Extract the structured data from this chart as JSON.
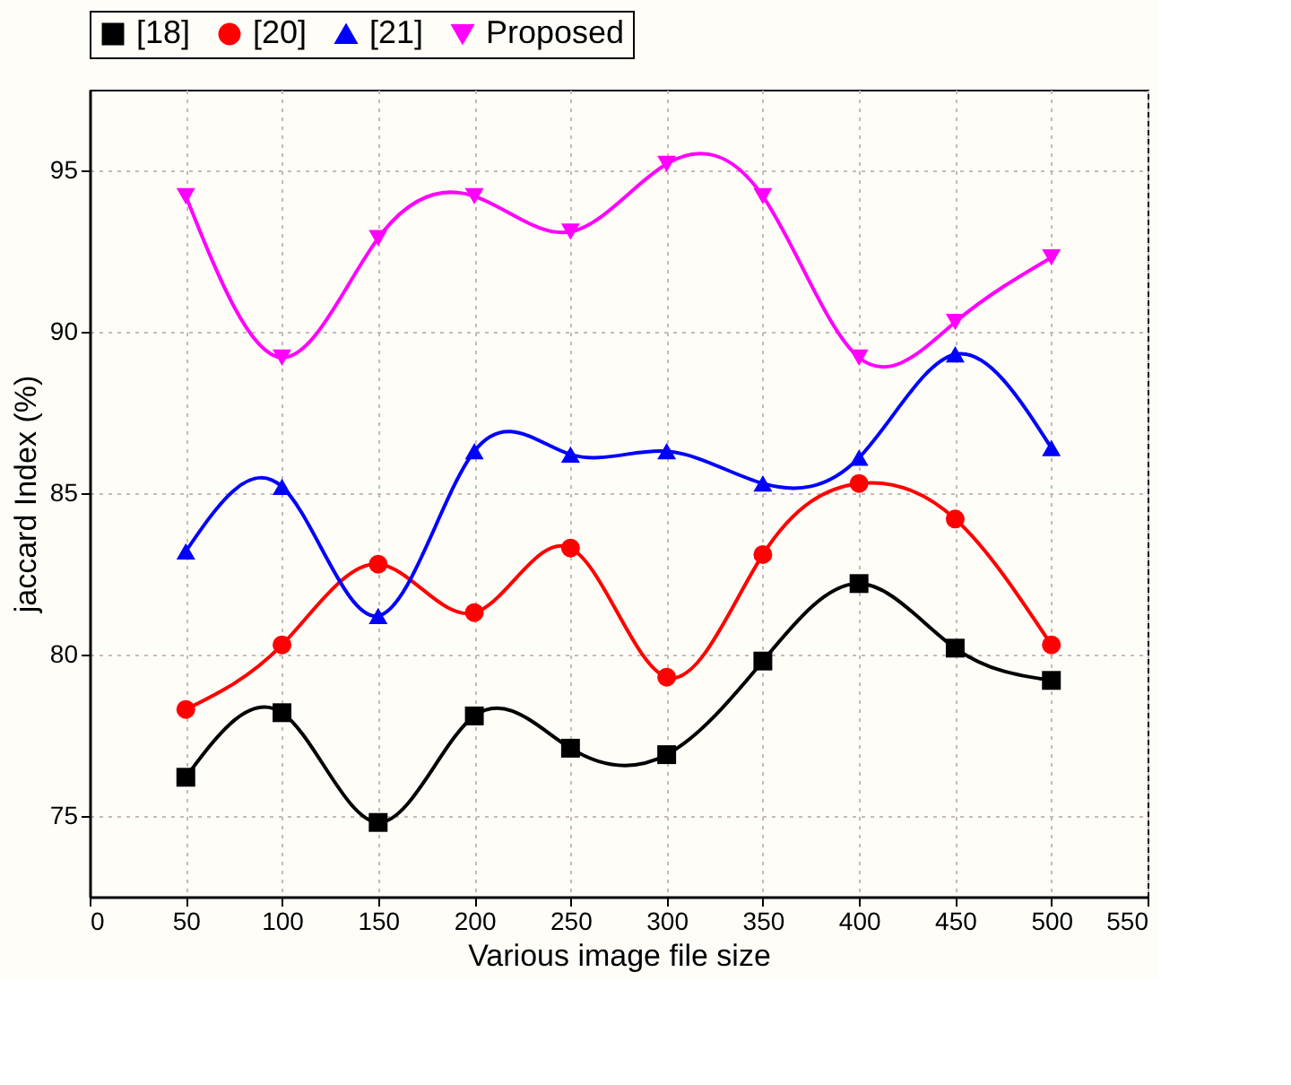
{
  "chart_data": {
    "type": "line",
    "xlabel": "Various image file size",
    "ylabel": "jaccard Index (%)",
    "x": [
      50,
      100,
      150,
      200,
      250,
      300,
      350,
      400,
      450,
      500
    ],
    "series": [
      {
        "name": "[18]",
        "color": "#000000",
        "marker": "square",
        "values": [
          76.2,
          78.2,
          74.8,
          78.1,
          77.1,
          76.9,
          79.8,
          82.2,
          80.2,
          79.2
        ]
      },
      {
        "name": "[20]",
        "color": "#ff0000",
        "marker": "circle",
        "values": [
          78.3,
          80.3,
          82.8,
          81.3,
          83.3,
          79.3,
          83.1,
          85.3,
          84.2,
          80.3
        ]
      },
      {
        "name": "[21]",
        "color": "#0000ff",
        "marker": "triangle",
        "values": [
          83.2,
          85.2,
          81.2,
          86.3,
          86.2,
          86.3,
          85.3,
          86.1,
          89.3,
          86.4
        ]
      },
      {
        "name": "Proposed",
        "color": "#ff00ff",
        "marker": "triangle-down",
        "values": [
          94.2,
          89.2,
          92.9,
          94.2,
          93.1,
          95.2,
          94.2,
          89.2,
          90.3,
          92.3
        ]
      }
    ],
    "xlim": [
      0,
      550
    ],
    "xticks": [
      0,
      50,
      100,
      150,
      200,
      250,
      300,
      350,
      400,
      450,
      500,
      550
    ],
    "ylim": [
      72.5,
      97.5
    ],
    "yticks": [
      75,
      80,
      85,
      90,
      95
    ],
    "grid": true,
    "legend": "top",
    "line_style": "solid"
  }
}
